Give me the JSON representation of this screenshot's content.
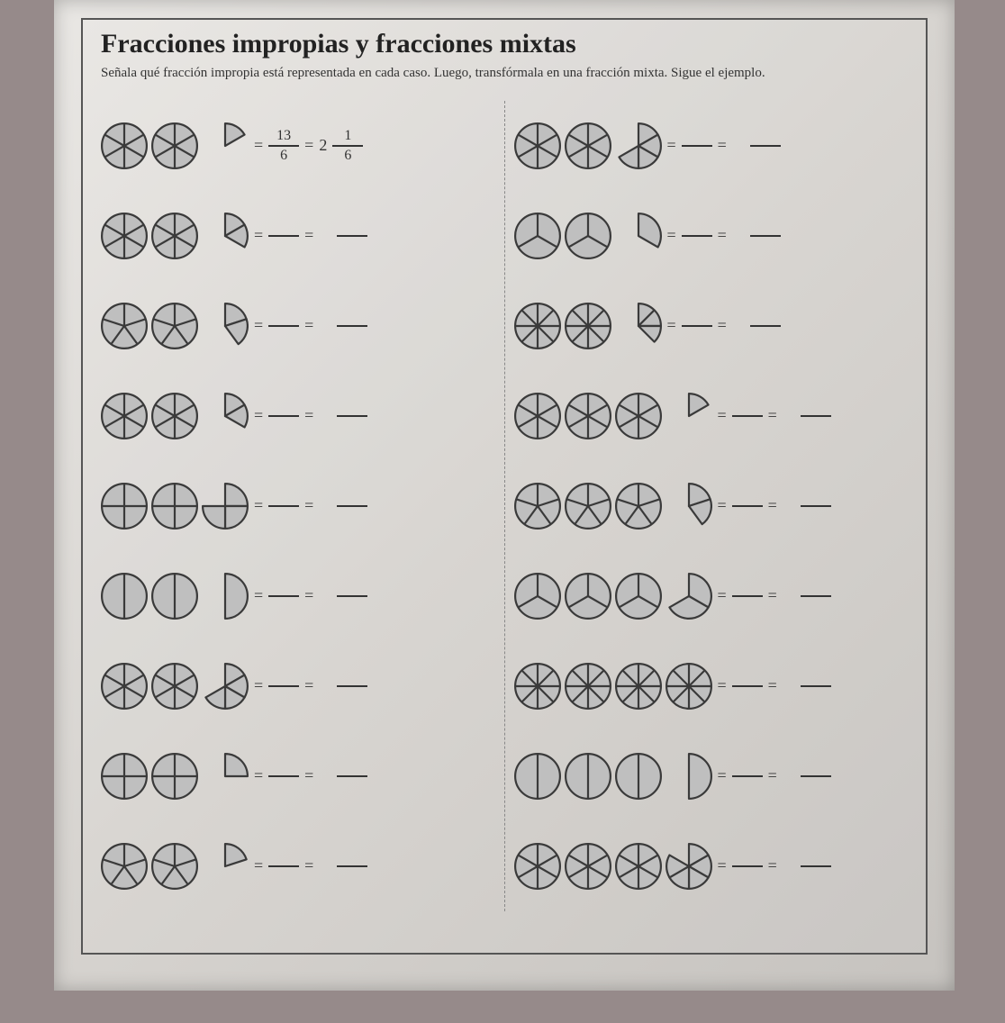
{
  "title": "Fracciones impropias y fracciones mixtas",
  "instructions": "Señala qué fracción impropia está representada en cada caso. Luego, transfórmala en una fracción mixta. Sigue el ejemplo.",
  "style": {
    "circle_diameter": 52,
    "stroke": "#3a3a3a",
    "stroke_width": 2.2,
    "fill_color": "#bfbfbf",
    "empty_color": "transparent"
  },
  "columns": [
    [
      {
        "shapes": [
          {
            "n": 6,
            "f": 6,
            "full": true
          },
          {
            "n": 6,
            "f": 6,
            "full": true
          },
          {
            "n": 6,
            "f": 1,
            "full": false
          }
        ],
        "example": {
          "improper": {
            "num": "13",
            "den": "6"
          },
          "whole": "2",
          "frac": {
            "num": "1",
            "den": "6"
          }
        }
      },
      {
        "shapes": [
          {
            "n": 6,
            "f": 6,
            "full": true
          },
          {
            "n": 6,
            "f": 6,
            "full": true
          },
          {
            "n": 6,
            "f": 2,
            "full": false
          }
        ]
      },
      {
        "shapes": [
          {
            "n": 5,
            "f": 5,
            "full": true
          },
          {
            "n": 5,
            "f": 5,
            "full": true
          },
          {
            "n": 5,
            "f": 2,
            "full": false
          }
        ]
      },
      {
        "shapes": [
          {
            "n": 6,
            "f": 6,
            "full": true
          },
          {
            "n": 6,
            "f": 6,
            "full": true
          },
          {
            "n": 6,
            "f": 2,
            "full": false
          }
        ]
      },
      {
        "shapes": [
          {
            "n": 4,
            "f": 4,
            "full": true
          },
          {
            "n": 4,
            "f": 4,
            "full": true
          },
          {
            "n": 4,
            "f": 3,
            "full": false
          }
        ]
      },
      {
        "shapes": [
          {
            "n": 2,
            "f": 2,
            "full": true
          },
          {
            "n": 2,
            "f": 2,
            "full": true
          },
          {
            "n": 2,
            "f": 1,
            "full": false
          }
        ]
      },
      {
        "shapes": [
          {
            "n": 6,
            "f": 6,
            "full": true
          },
          {
            "n": 6,
            "f": 6,
            "full": true
          },
          {
            "n": 6,
            "f": 4,
            "full": false
          }
        ]
      },
      {
        "shapes": [
          {
            "n": 4,
            "f": 4,
            "full": true
          },
          {
            "n": 4,
            "f": 4,
            "full": true
          },
          {
            "n": 4,
            "f": 1,
            "full": false
          }
        ]
      },
      {
        "shapes": [
          {
            "n": 5,
            "f": 5,
            "full": true
          },
          {
            "n": 5,
            "f": 5,
            "full": true
          },
          {
            "n": 5,
            "f": 1,
            "full": false
          }
        ]
      }
    ],
    [
      {
        "shapes": [
          {
            "n": 6,
            "f": 6,
            "full": true
          },
          {
            "n": 6,
            "f": 6,
            "full": true
          },
          {
            "n": 6,
            "f": 4,
            "full": false
          }
        ]
      },
      {
        "shapes": [
          {
            "n": 3,
            "f": 3,
            "full": true
          },
          {
            "n": 3,
            "f": 3,
            "full": true
          },
          {
            "n": 3,
            "f": 1,
            "full": false
          }
        ]
      },
      {
        "shapes": [
          {
            "n": 8,
            "f": 8,
            "full": true
          },
          {
            "n": 8,
            "f": 8,
            "full": true
          },
          {
            "n": 8,
            "f": 3,
            "full": false
          }
        ]
      },
      {
        "shapes": [
          {
            "n": 6,
            "f": 6,
            "full": true
          },
          {
            "n": 6,
            "f": 6,
            "full": true
          },
          {
            "n": 6,
            "f": 6,
            "full": true
          },
          {
            "n": 6,
            "f": 1,
            "full": false
          }
        ]
      },
      {
        "shapes": [
          {
            "n": 5,
            "f": 5,
            "full": true
          },
          {
            "n": 5,
            "f": 5,
            "full": true
          },
          {
            "n": 5,
            "f": 5,
            "full": true
          },
          {
            "n": 5,
            "f": 2,
            "full": false
          }
        ]
      },
      {
        "shapes": [
          {
            "n": 3,
            "f": 3,
            "full": true
          },
          {
            "n": 3,
            "f": 3,
            "full": true
          },
          {
            "n": 3,
            "f": 3,
            "full": true
          },
          {
            "n": 3,
            "f": 2,
            "full": false
          }
        ]
      },
      {
        "shapes": [
          {
            "n": 8,
            "f": 8,
            "full": true
          },
          {
            "n": 8,
            "f": 8,
            "full": true
          },
          {
            "n": 8,
            "f": 8,
            "full": true
          },
          {
            "n": 8,
            "f": 8,
            "full": true
          }
        ]
      },
      {
        "shapes": [
          {
            "n": 2,
            "f": 2,
            "full": true
          },
          {
            "n": 2,
            "f": 2,
            "full": true
          },
          {
            "n": 2,
            "f": 2,
            "full": true
          },
          {
            "n": 2,
            "f": 1,
            "full": false
          }
        ]
      },
      {
        "shapes": [
          {
            "n": 6,
            "f": 6,
            "full": true
          },
          {
            "n": 6,
            "f": 6,
            "full": true
          },
          {
            "n": 6,
            "f": 6,
            "full": true
          },
          {
            "n": 6,
            "f": 5,
            "full": false
          }
        ]
      }
    ]
  ]
}
